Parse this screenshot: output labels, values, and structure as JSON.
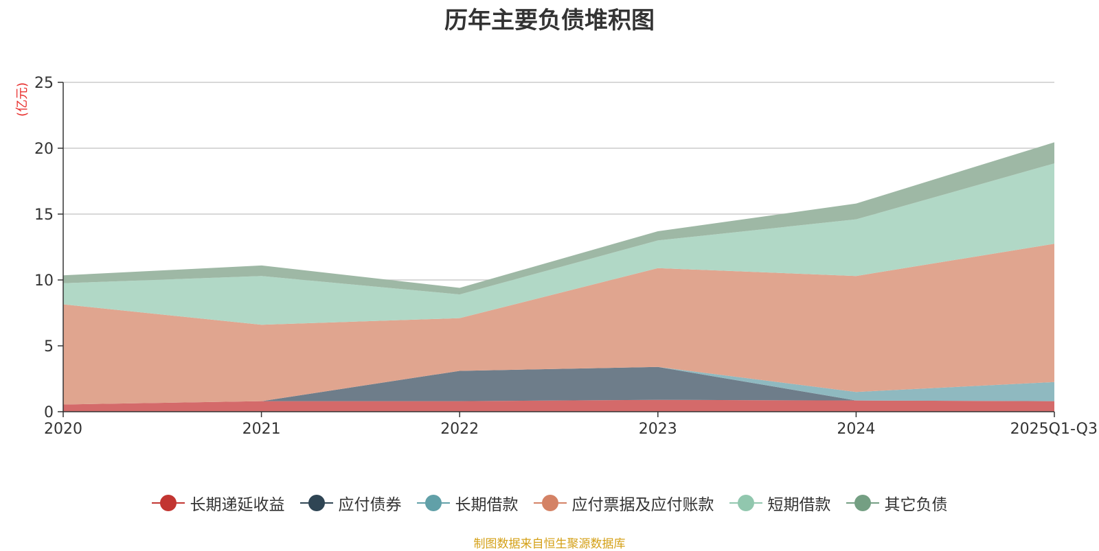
{
  "chart_data": {
    "type": "area",
    "stacked": true,
    "title": "历年主要负债堆积图",
    "unit_label": "(亿元)",
    "categories": [
      "2020",
      "2021",
      "2022",
      "2023",
      "2024",
      "2025Q1-Q3"
    ],
    "ylim": [
      0,
      25
    ],
    "yticks": [
      0,
      5,
      10,
      15,
      20,
      25
    ],
    "grid": true,
    "legend_position": "bottom",
    "series": [
      {
        "name": "长期递延收益",
        "color": "#c23531",
        "fill": "#d46a6a",
        "values": [
          0.55,
          0.8,
          0.8,
          0.9,
          0.85,
          0.8
        ]
      },
      {
        "name": "应付债券",
        "color": "#2f4554",
        "fill": "#6e7d8a",
        "values": [
          0.0,
          0.0,
          2.3,
          2.5,
          0.0,
          0.0
        ]
      },
      {
        "name": "长期借款",
        "color": "#61a0a8",
        "fill": "#8fb9c0",
        "values": [
          0.0,
          0.0,
          0.0,
          0.0,
          0.65,
          1.45
        ]
      },
      {
        "name": "应付票据及应付账款",
        "color": "#d48265",
        "fill": "#e0a58f",
        "values": [
          7.6,
          5.8,
          4.0,
          7.5,
          8.8,
          10.5
        ]
      },
      {
        "name": "短期借款",
        "color": "#91c7ae",
        "fill": "#b1d8c6",
        "values": [
          1.6,
          3.7,
          1.8,
          2.1,
          4.3,
          6.1
        ]
      },
      {
        "name": "其它负债",
        "color": "#749f83",
        "fill": "#9eb8a5",
        "values": [
          0.6,
          0.8,
          0.5,
          0.7,
          1.2,
          1.6
        ]
      }
    ],
    "source_note": "制图数据来自恒生聚源数据库"
  }
}
